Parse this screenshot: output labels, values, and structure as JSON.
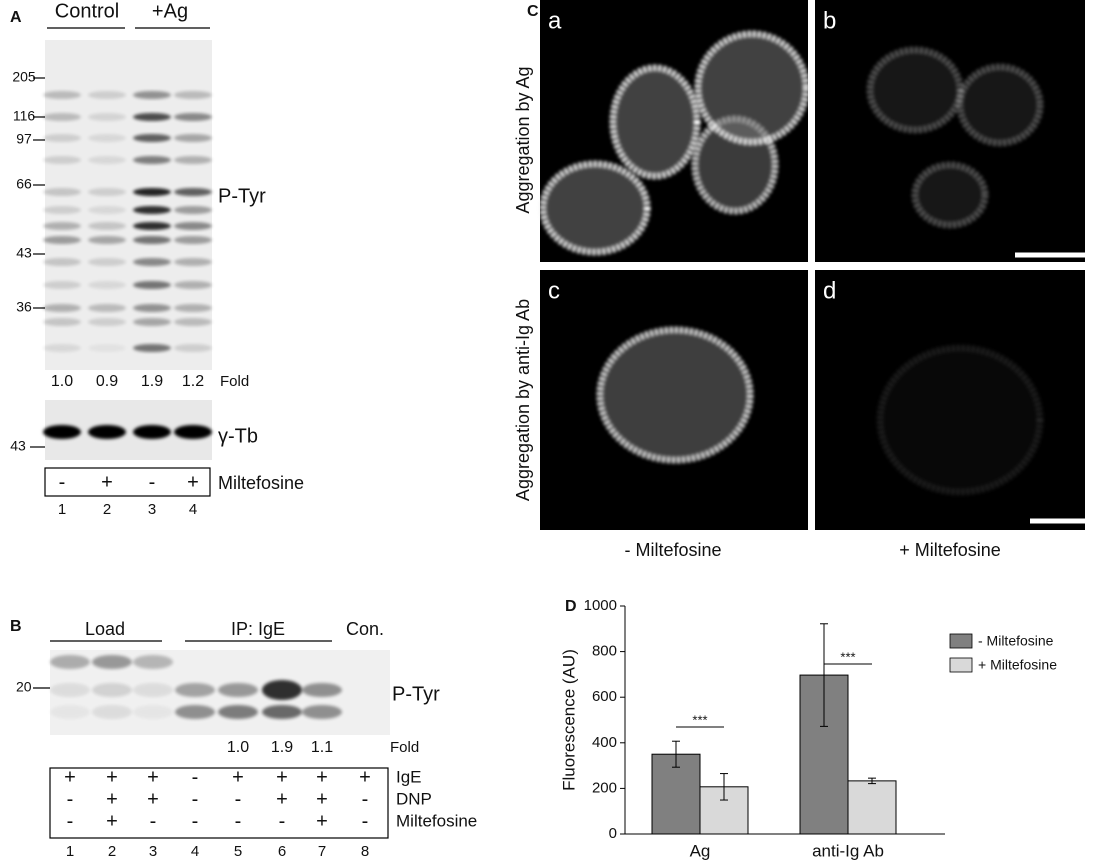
{
  "panel_a": {
    "label": "A",
    "groups": [
      "Control",
      "+Ag"
    ],
    "markers": [
      "205",
      "116",
      "97",
      "66",
      "43",
      "36"
    ],
    "blot_label": "P-Tyr",
    "fold_values": [
      "1.0",
      "0.9",
      "1.9",
      "1.2"
    ],
    "fold_label": "Fold",
    "loading_marker": "43",
    "loading_label": "γ-Tb",
    "treatment": [
      "-",
      "+",
      "-",
      "+"
    ],
    "treatment_label": "Miltefosine",
    "lanes": [
      "1",
      "2",
      "3",
      "4"
    ]
  },
  "panel_b": {
    "label": "B",
    "groups": [
      "Load",
      "IP: IgE",
      "Con."
    ],
    "marker": "20",
    "blot_label": "P-Tyr",
    "fold_values": [
      "1.0",
      "1.9",
      "1.1"
    ],
    "fold_label": "Fold",
    "rows": [
      {
        "name": "IgE",
        "values": [
          "+",
          "+",
          "+",
          "-",
          "+",
          "+",
          "+",
          "+"
        ]
      },
      {
        "name": "DNP",
        "values": [
          "-",
          "+",
          "+",
          "-",
          "-",
          "+",
          "+",
          "-"
        ]
      },
      {
        "name": "Miltefosine",
        "values": [
          "-",
          "+",
          "-",
          "-",
          "-",
          "-",
          "+",
          "-"
        ]
      }
    ],
    "lanes": [
      "1",
      "2",
      "3",
      "4",
      "5",
      "6",
      "7",
      "8"
    ]
  },
  "panel_c": {
    "label": "C",
    "letters": [
      "a",
      "b",
      "c",
      "d"
    ],
    "row_labels": [
      "Aggregation by Ag",
      "Aggregation by anti-Ig Ab"
    ],
    "column_labels": [
      "- Miltefosine",
      "+ Miltefosine"
    ]
  },
  "chart_data": {
    "type": "bar",
    "panel_label": "D",
    "y_label": "Fluorescence (AU)",
    "categories": [
      "Ag",
      "anti-Ig Ab"
    ],
    "series": [
      {
        "name": "- Miltefosine",
        "color": "#808080",
        "values": [
          350,
          697
        ],
        "errors": [
          57,
          225
        ]
      },
      {
        "name": "+ Miltefosine",
        "color": "#d9d9d9",
        "values": [
          207,
          233
        ],
        "errors": [
          58,
          12
        ]
      }
    ],
    "ylim": [
      0,
      1000
    ],
    "yticks": [
      0,
      200,
      400,
      600,
      800,
      1000
    ],
    "annotations": [
      "***",
      "***"
    ],
    "legend": "right"
  }
}
